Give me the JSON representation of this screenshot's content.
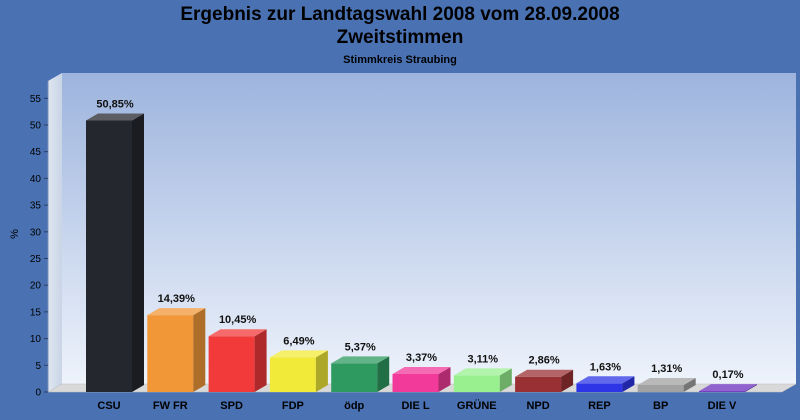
{
  "chart_data": {
    "type": "bar",
    "title": "Ergebnis zur Landtagswahl 2008 vom 28.09.2008",
    "subtitle": "Zweitstimmen",
    "subsubtitle": "Stimmkreis Straubing",
    "ylabel": "%",
    "ylim": [
      0,
      57
    ],
    "yticks": [
      0,
      5,
      10,
      15,
      20,
      25,
      30,
      35,
      40,
      45,
      50,
      55
    ],
    "categories": [
      "CSU",
      "FW FR",
      "SPD",
      "FDP",
      "ödp",
      "DIE L",
      "GRÜNE",
      "NPD",
      "REP",
      "BP",
      "DIE V"
    ],
    "values": [
      50.85,
      14.39,
      10.45,
      6.49,
      5.37,
      3.37,
      3.11,
      2.86,
      1.63,
      1.31,
      0.17
    ],
    "value_labels": [
      "50,85%",
      "14,39%",
      "10,45%",
      "6,49%",
      "5,37%",
      "3,37%",
      "3,11%",
      "2,86%",
      "1,63%",
      "1,31%",
      "0,17%"
    ],
    "colors": [
      "#24272e",
      "#f29738",
      "#f23a3a",
      "#f2ea38",
      "#2f9a60",
      "#f23a9a",
      "#98f08f",
      "#993033",
      "#2d35e6",
      "#a2a2a2",
      "#6b2fbf"
    ],
    "grid": false,
    "legend": "none"
  }
}
